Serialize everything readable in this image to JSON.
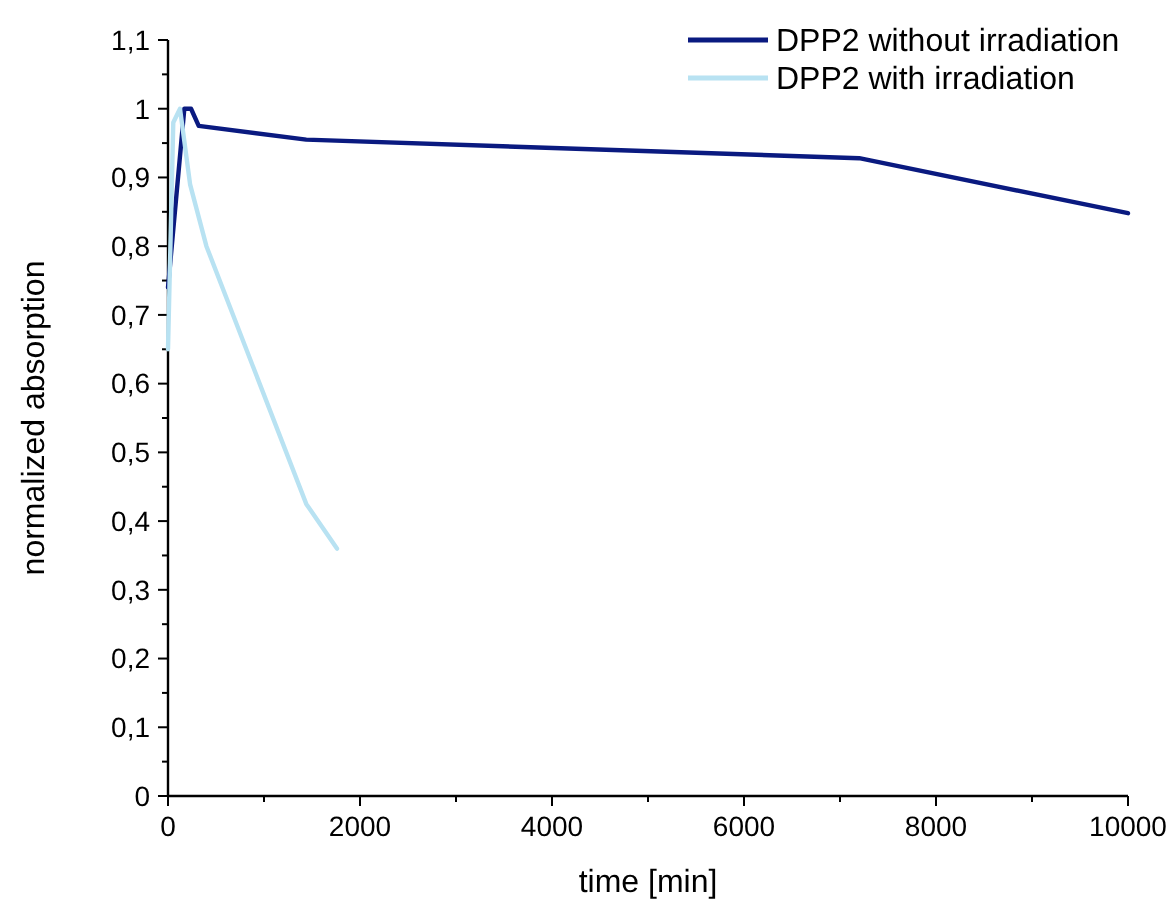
{
  "chart_data": {
    "type": "line",
    "xlabel": "time [min]",
    "ylabel": "normalized absorption",
    "legend": "top right",
    "marker": "none",
    "line_style": "solid",
    "grid": false,
    "xlim": [
      0,
      10000
    ],
    "ylim": [
      0,
      1.1
    ],
    "xticks": [
      0,
      {
        "value": 1000,
        "label": null
      },
      2000,
      {
        "value": 3000,
        "label": null
      },
      4000,
      {
        "value": 5000,
        "label": null
      },
      6000,
      {
        "value": 7000,
        "label": null
      },
      8000,
      {
        "value": 9000,
        "label": null
      },
      10000
    ],
    "yticks": [
      0,
      {
        "value": 0.05,
        "label": null
      },
      {
        "value": 0.1,
        "label": "0,1"
      },
      {
        "value": 0.15,
        "label": null
      },
      {
        "value": 0.2,
        "label": "0,2"
      },
      {
        "value": 0.25,
        "label": null
      },
      {
        "value": 0.3,
        "label": "0,3"
      },
      {
        "value": 0.35,
        "label": null
      },
      {
        "value": 0.4,
        "label": "0,4"
      },
      {
        "value": 0.45,
        "label": null
      },
      {
        "value": 0.5,
        "label": "0,5"
      },
      {
        "value": 0.55,
        "label": null
      },
      {
        "value": 0.6,
        "label": "0,6"
      },
      {
        "value": 0.65,
        "label": null
      },
      {
        "value": 0.7,
        "label": "0,7"
      },
      {
        "value": 0.75,
        "label": null
      },
      {
        "value": 0.8,
        "label": "0,8"
      },
      {
        "value": 0.85,
        "label": null
      },
      {
        "value": 0.9,
        "label": "0,9"
      },
      {
        "value": 0.95,
        "label": null
      },
      1,
      {
        "value": 1.05,
        "label": null
      },
      {
        "value": 1.1,
        "label": "1,1"
      }
    ],
    "series": [
      {
        "name": "DPP2 without irradiation",
        "color": "#0a1a80",
        "x": [
          0,
          170,
          240,
          320,
          1440,
          7200,
          10000
        ],
        "values": [
          0.74,
          1.0,
          1.0,
          0.975,
          0.955,
          0.928,
          0.848
        ]
      },
      {
        "name": "DPP2 with irradiation",
        "color": "#b8e2f2",
        "x": [
          0,
          55,
          125,
          230,
          400,
          1440,
          1760
        ],
        "values": [
          0.65,
          0.98,
          1.0,
          0.89,
          0.8,
          0.425,
          0.36
        ]
      }
    ]
  }
}
